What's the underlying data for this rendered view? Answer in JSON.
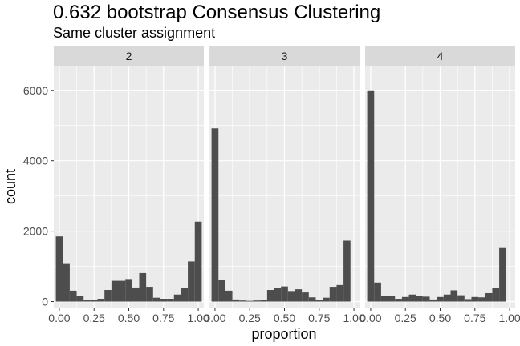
{
  "chart_data": {
    "type": "bar",
    "title": "0.632 bootstrap Consensus Clustering",
    "subtitle": "Same cluster assignment",
    "xlabel": "proportion",
    "ylabel": "count",
    "xlim": [
      -0.04,
      1.04
    ],
    "ylim": [
      -170,
      6700
    ],
    "x_ticks": [
      0.0,
      0.25,
      0.5,
      0.75,
      1.0
    ],
    "x_tick_labels": [
      "0.00",
      "0.25",
      "0.50",
      "0.75",
      "1.00"
    ],
    "y_ticks": [
      0,
      2000,
      4000,
      6000
    ],
    "y_tick_labels": [
      "0",
      "2000",
      "4000",
      "6000"
    ],
    "bin_centers": [
      0.0,
      0.05,
      0.1,
      0.15,
      0.2,
      0.25,
      0.3,
      0.35,
      0.4,
      0.45,
      0.5,
      0.55,
      0.6,
      0.65,
      0.7,
      0.75,
      0.8,
      0.85,
      0.9,
      0.95,
      1.0
    ],
    "panels": [
      {
        "facet": "2",
        "values": [
          1850,
          1090,
          310,
          160,
          50,
          50,
          80,
          330,
          590,
          590,
          640,
          400,
          810,
          420,
          110,
          80,
          80,
          200,
          390,
          1140,
          2270
        ]
      },
      {
        "facet": "3",
        "values": [
          4920,
          610,
          310,
          60,
          30,
          20,
          30,
          50,
          330,
          380,
          430,
          300,
          350,
          260,
          120,
          50,
          110,
          420,
          470,
          1730,
          0
        ]
      },
      {
        "facet": "4",
        "values": [
          6000,
          540,
          150,
          170,
          80,
          130,
          200,
          150,
          140,
          60,
          130,
          200,
          320,
          180,
          70,
          130,
          120,
          240,
          390,
          1520,
          0
        ]
      }
    ],
    "colors": {
      "bar": "#4d4d4d",
      "panel_bg": "#ebebeb",
      "strip_bg": "#d9d9d9",
      "grid": "#ffffff"
    },
    "grid": true,
    "legend": "none"
  }
}
